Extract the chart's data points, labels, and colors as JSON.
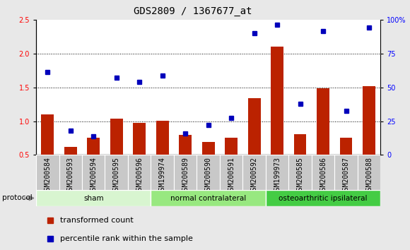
{
  "title": "GDS2809 / 1367677_at",
  "samples": [
    "GSM200584",
    "GSM200593",
    "GSM200594",
    "GSM200595",
    "GSM200596",
    "GSM199974",
    "GSM200589",
    "GSM200590",
    "GSM200591",
    "GSM200592",
    "GSM199973",
    "GSM200585",
    "GSM200586",
    "GSM200587",
    "GSM200588"
  ],
  "bar_values": [
    1.1,
    0.62,
    0.76,
    1.04,
    0.98,
    1.01,
    0.8,
    0.69,
    0.76,
    1.34,
    2.11,
    0.81,
    1.49,
    0.76,
    1.52
  ],
  "dot_values": [
    1.73,
    0.86,
    0.78,
    1.65,
    1.58,
    1.68,
    0.82,
    0.94,
    1.05,
    2.3,
    2.43,
    1.26,
    2.34,
    1.15,
    2.39
  ],
  "bar_color": "#BB2200",
  "dot_color": "#0000BB",
  "left_ylim": [
    0.5,
    2.5
  ],
  "left_yticks": [
    0.5,
    1.0,
    1.5,
    2.0,
    2.5
  ],
  "right_tick_positions": [
    0.5,
    1.0,
    1.5,
    2.0,
    2.5
  ],
  "right_tick_labels": [
    "0",
    "25",
    "50",
    "75",
    "100%"
  ],
  "groups": [
    {
      "label": "sham",
      "start": 0,
      "end": 5,
      "color": "#d8f5d0"
    },
    {
      "label": "normal contralateral",
      "start": 5,
      "end": 10,
      "color": "#98e880"
    },
    {
      "label": "osteoarthritic ipsilateral",
      "start": 10,
      "end": 15,
      "color": "#44cc44"
    }
  ],
  "protocol_label": "protocol",
  "legend_bar": "transformed count",
  "legend_dot": "percentile rank within the sample",
  "fig_bg": "#e8e8e8",
  "plot_bg": "#ffffff",
  "xtick_box_color": "#c8c8c8",
  "dotted_line_color": "#000000",
  "title_fontsize": 10,
  "tick_fontsize": 7,
  "label_fontsize": 7.5,
  "bar_bottom": 0.5
}
